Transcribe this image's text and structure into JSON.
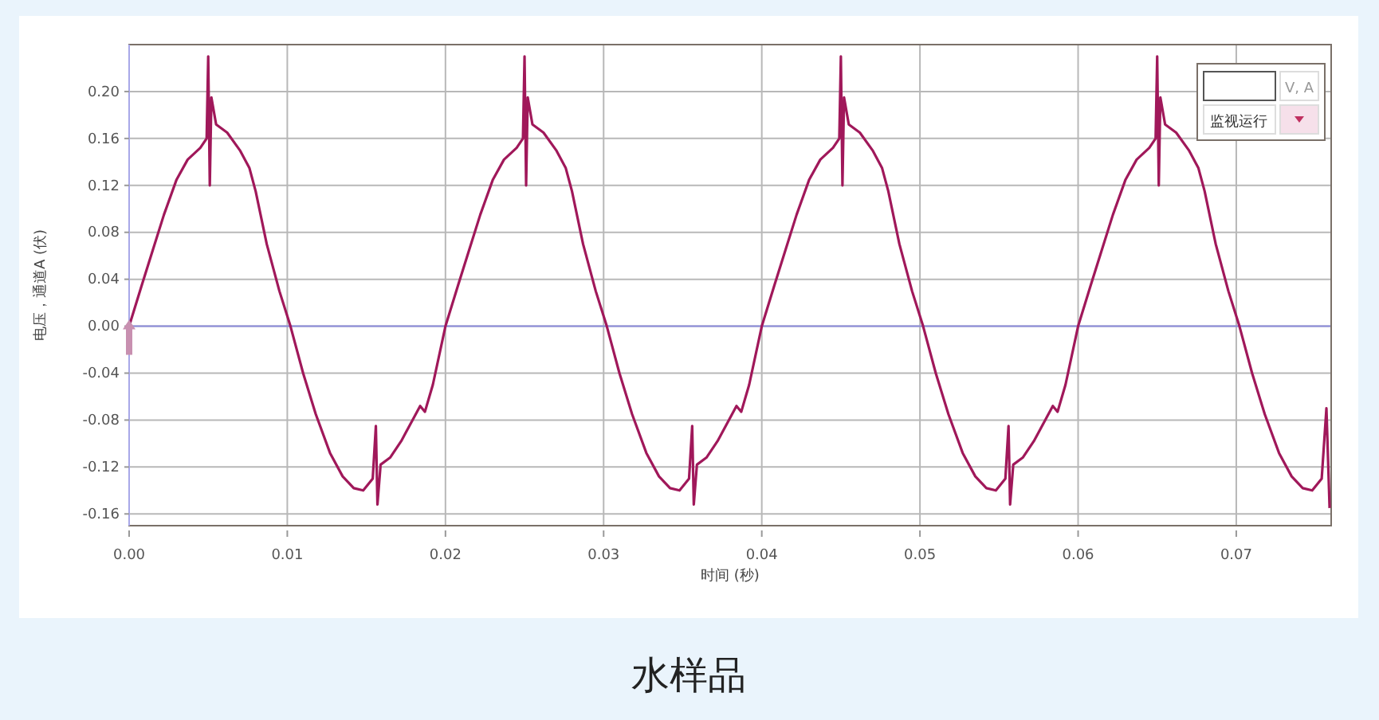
{
  "chart_data": {
    "type": "line",
    "title": "水样品",
    "xlabel": "时间 (秒)",
    "ylabel": "电压，通道A (伏)",
    "annotations": [
      "V, A",
      "监视运行"
    ],
    "xlim": [
      0,
      0.076
    ],
    "xticks": [
      {
        "value": 0,
        "label": "0.00"
      },
      0.01,
      0.02,
      0.03,
      0.04,
      0.05,
      0.06,
      0.07
    ],
    "ylim": [
      -0.17,
      0.24
    ],
    "yticks": [
      -0.16,
      -0.12,
      -0.08,
      -0.04,
      {
        "value": 0,
        "label": "0.00"
      },
      0.04,
      0.08,
      0.12,
      0.16,
      {
        "value": 0.2,
        "label": "0.20"
      }
    ],
    "grid": true,
    "line_style": "solid",
    "marker": "none",
    "ref_lines": [
      {
        "axis": "y",
        "value": 0,
        "color": "#8c8cdc"
      }
    ],
    "series": [
      {
        "color": "#a0185a",
        "x": [
          0,
          0.0008,
          0.0015,
          0.0022,
          0.003,
          0.0037,
          0.0045,
          0.0049,
          0.005,
          0.0051,
          0.0052,
          0.0055,
          0.0062,
          0.007,
          0.0076,
          0.008,
          0.0087,
          0.0095,
          0.0102,
          0.011,
          0.0118,
          0.0127,
          0.0135,
          0.0142,
          0.0148,
          0.0154,
          0.0156,
          0.0157,
          0.0159,
          0.0165,
          0.0172,
          0.018,
          0.0184,
          0.0187,
          0.0192,
          0.02,
          0.0208,
          0.0215,
          0.0222,
          0.023,
          0.0237,
          0.0245,
          0.0249,
          0.025,
          0.0251,
          0.0252,
          0.0255,
          0.0262,
          0.027,
          0.0276,
          0.028,
          0.0287,
          0.0295,
          0.0302,
          0.031,
          0.0318,
          0.0327,
          0.0335,
          0.0342,
          0.0348,
          0.0354,
          0.0356,
          0.0357,
          0.0359,
          0.0365,
          0.0372,
          0.038,
          0.0384,
          0.0387,
          0.0392,
          0.04,
          0.0408,
          0.0415,
          0.0422,
          0.043,
          0.0437,
          0.0445,
          0.0449,
          0.045,
          0.0451,
          0.0452,
          0.0455,
          0.0462,
          0.047,
          0.0476,
          0.048,
          0.0487,
          0.0495,
          0.0502,
          0.051,
          0.0518,
          0.0527,
          0.0535,
          0.0542,
          0.0548,
          0.0554,
          0.0556,
          0.0557,
          0.0559,
          0.0565,
          0.0572,
          0.058,
          0.0584,
          0.0587,
          0.0592,
          0.06,
          0.0608,
          0.0615,
          0.0622,
          0.063,
          0.0637,
          0.0645,
          0.0649,
          0.065,
          0.0651,
          0.0652,
          0.0655,
          0.0662,
          0.067,
          0.0676,
          0.068,
          0.0687,
          0.0695,
          0.0702,
          0.071,
          0.0718,
          0.0727,
          0.0735,
          0.0742,
          0.0748,
          0.0754,
          0.0757,
          0.0759
        ],
        "values": [
          0,
          0.035,
          0.065,
          0.095,
          0.125,
          0.142,
          0.152,
          0.16,
          0.23,
          0.12,
          0.195,
          0.172,
          0.165,
          0.15,
          0.135,
          0.115,
          0.07,
          0.03,
          0,
          -0.04,
          -0.075,
          -0.108,
          -0.128,
          -0.138,
          -0.14,
          -0.13,
          -0.085,
          -0.152,
          -0.118,
          -0.112,
          -0.098,
          -0.078,
          -0.068,
          -0.073,
          -0.05,
          0,
          0.035,
          0.065,
          0.095,
          0.125,
          0.142,
          0.152,
          0.16,
          0.23,
          0.12,
          0.195,
          0.172,
          0.165,
          0.15,
          0.135,
          0.115,
          0.07,
          0.03,
          0,
          -0.04,
          -0.075,
          -0.108,
          -0.128,
          -0.138,
          -0.14,
          -0.13,
          -0.085,
          -0.152,
          -0.118,
          -0.112,
          -0.098,
          -0.078,
          -0.068,
          -0.073,
          -0.05,
          0,
          0.035,
          0.065,
          0.095,
          0.125,
          0.142,
          0.152,
          0.16,
          0.23,
          0.12,
          0.195,
          0.172,
          0.165,
          0.15,
          0.135,
          0.115,
          0.07,
          0.03,
          0,
          -0.04,
          -0.075,
          -0.108,
          -0.128,
          -0.138,
          -0.14,
          -0.13,
          -0.085,
          -0.152,
          -0.118,
          -0.112,
          -0.098,
          -0.078,
          -0.068,
          -0.073,
          -0.05,
          0,
          0.035,
          0.065,
          0.095,
          0.125,
          0.142,
          0.152,
          0.16,
          0.23,
          0.12,
          0.195,
          0.172,
          0.165,
          0.15,
          0.135,
          0.115,
          0.07,
          0.03,
          0,
          -0.04,
          -0.075,
          -0.108,
          -0.128,
          -0.138,
          -0.14,
          -0.13,
          -0.07,
          -0.155
        ]
      }
    ]
  }
}
